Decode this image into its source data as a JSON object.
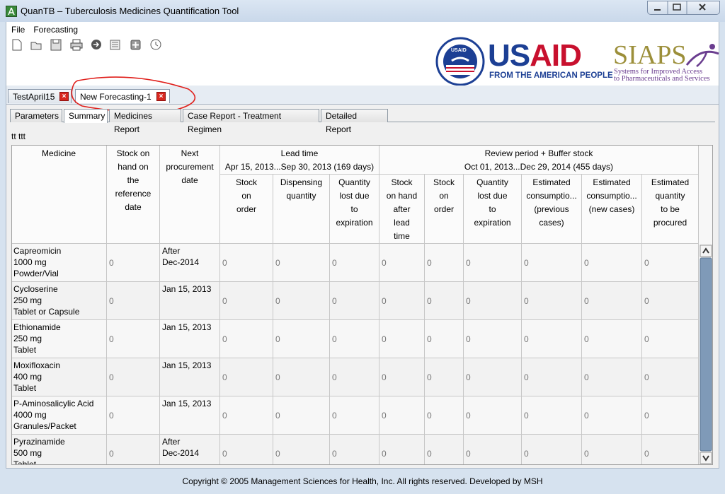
{
  "window": {
    "title": "QuanTB – Tuberculosis Medicines Quantification Tool"
  },
  "menu": [
    "File",
    "Forecasting"
  ],
  "logos": {
    "usaid": {
      "seal": "USAID",
      "us": "US",
      "aid": "AID",
      "tagline": "FROM THE AMERICAN PEOPLE"
    },
    "siaps": {
      "name": "SIAPS",
      "tagline": [
        "Systems for Improved Access",
        "to Pharmaceuticals and Services"
      ]
    }
  },
  "doc_tabs": [
    "TestApril15",
    "New Forecasting-1"
  ],
  "view_tabs": [
    "Parameters",
    "Summary",
    "Medicines Report",
    "Case Report - Treatment Regimen",
    "Detailed Report"
  ],
  "subtitle": "tt ttt",
  "table": {
    "group_headers": [
      {
        "label": "Lead time",
        "period": "Apr 15, 2013...Sep 30, 2013 (169 days)"
      },
      {
        "label": "Review period + Buffer stock",
        "period": "Oct 01, 2013...Dec 29, 2014 (455 days)"
      }
    ],
    "columns": [
      [
        "Medicine"
      ],
      [
        "Stock on",
        "hand on",
        "the",
        "reference",
        "date"
      ],
      [
        "Next",
        "procurement",
        "date"
      ],
      [
        "Stock",
        "on",
        "order"
      ],
      [
        "Dispensing",
        "quantity"
      ],
      [
        "Quantity",
        "lost due",
        "to",
        "expiration"
      ],
      [
        "Stock",
        "on hand",
        "after",
        "lead",
        "time"
      ],
      [
        "Stock",
        "on",
        "order"
      ],
      [
        "Quantity",
        "lost due",
        "to",
        "expiration"
      ],
      [
        "Estimated",
        "consumptio...",
        "(previous",
        "cases)"
      ],
      [
        "Estimated",
        "consumptio...",
        "(new cases)"
      ],
      [
        "Estimated",
        "quantity",
        "to be",
        "procured"
      ]
    ],
    "rows": [
      [
        [
          "Capreomicin",
          "1000 mg",
          "Powder/Vial"
        ],
        0,
        [
          "After",
          "Dec-2014"
        ],
        0,
        0,
        0,
        0,
        0,
        0,
        0,
        0,
        0
      ],
      [
        [
          "Cycloserine",
          "250 mg",
          "Tablet or Capsule"
        ],
        0,
        [
          "Jan 15, 2013"
        ],
        0,
        0,
        0,
        0,
        0,
        0,
        0,
        0,
        0
      ],
      [
        [
          "Ethionamide",
          "250 mg",
          "Tablet"
        ],
        0,
        [
          "Jan 15, 2013"
        ],
        0,
        0,
        0,
        0,
        0,
        0,
        0,
        0,
        0
      ],
      [
        [
          "Moxifloxacin",
          "400 mg",
          "Tablet"
        ],
        0,
        [
          "Jan 15, 2013"
        ],
        0,
        0,
        0,
        0,
        0,
        0,
        0,
        0,
        0
      ],
      [
        [
          "P-Aminosalicylic Acid",
          "4000 mg",
          "Granules/Packet"
        ],
        0,
        [
          "Jan 15, 2013"
        ],
        0,
        0,
        0,
        0,
        0,
        0,
        0,
        0,
        0
      ],
      [
        [
          "Pyrazinamide",
          "500 mg",
          "Tablet"
        ],
        0,
        [
          "After",
          "Dec-2014"
        ],
        0,
        0,
        0,
        0,
        0,
        0,
        0,
        0,
        0
      ]
    ]
  },
  "footer": "Copyright © 2005 Management Sciences for Health, Inc. All rights reserved. Developed by MSH"
}
